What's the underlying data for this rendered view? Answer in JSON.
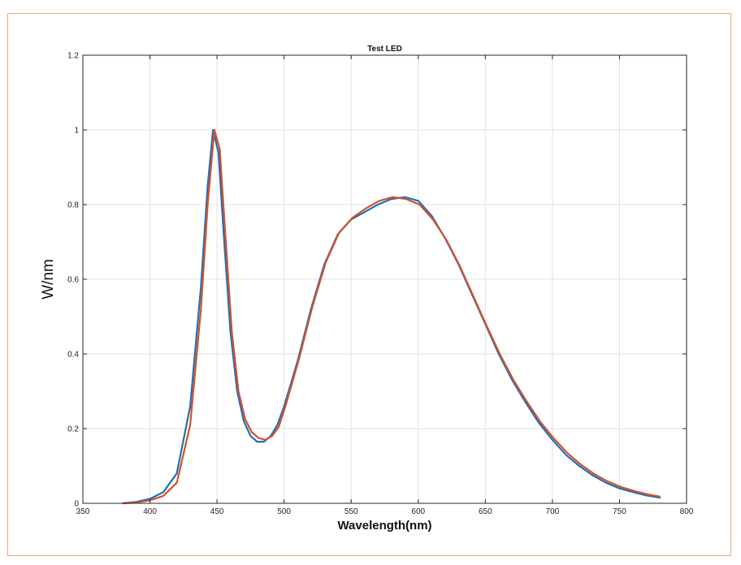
{
  "chart_data": {
    "type": "line",
    "title": "Test LED",
    "xlabel": "Wavelength(nm)",
    "ylabel": "W/nm",
    "xlim": [
      350,
      800
    ],
    "ylim": [
      0,
      1.2
    ],
    "xticks": [
      350,
      400,
      450,
      500,
      550,
      600,
      650,
      700,
      750,
      800
    ],
    "yticks": [
      0,
      0.2,
      0.4,
      0.6,
      0.8,
      1,
      1.2
    ],
    "xtick_labels": [
      "350",
      "400",
      "450",
      "500",
      "550",
      "600",
      "650",
      "700",
      "750",
      "800"
    ],
    "ytick_labels": [
      "0",
      "0.2",
      "0.4",
      "0.6",
      "0.8",
      "1",
      "1.2"
    ],
    "grid": true,
    "series": [
      {
        "color": "#1f6fb8",
        "x": [
          380,
          390,
          400,
          410,
          420,
          430,
          438,
          443,
          447,
          451,
          455,
          460,
          465,
          470,
          475,
          480,
          485,
          490,
          495,
          500,
          510,
          520,
          530,
          540,
          550,
          560,
          570,
          580,
          590,
          600,
          610,
          620,
          630,
          640,
          650,
          660,
          670,
          680,
          690,
          700,
          710,
          720,
          730,
          740,
          750,
          760,
          770,
          780
        ],
        "y": [
          0.0,
          0.004,
          0.012,
          0.03,
          0.08,
          0.26,
          0.58,
          0.85,
          1.0,
          0.94,
          0.72,
          0.46,
          0.3,
          0.22,
          0.18,
          0.165,
          0.165,
          0.18,
          0.21,
          0.26,
          0.38,
          0.52,
          0.64,
          0.72,
          0.76,
          0.78,
          0.8,
          0.815,
          0.82,
          0.81,
          0.77,
          0.71,
          0.64,
          0.56,
          0.48,
          0.4,
          0.33,
          0.27,
          0.215,
          0.17,
          0.13,
          0.1,
          0.075,
          0.055,
          0.04,
          0.03,
          0.021,
          0.015
        ]
      },
      {
        "color": "#d2522a",
        "x": [
          380,
          390,
          400,
          410,
          420,
          430,
          438,
          443,
          448,
          452,
          456,
          461,
          466,
          471,
          476,
          481,
          486,
          491,
          496,
          501,
          511,
          521,
          531,
          541,
          551,
          561,
          571,
          581,
          591,
          601,
          611,
          621,
          631,
          641,
          651,
          661,
          671,
          681,
          691,
          701,
          711,
          721,
          731,
          741,
          751,
          761,
          771,
          780
        ],
        "y": [
          0.0,
          0.002,
          0.008,
          0.02,
          0.055,
          0.21,
          0.52,
          0.8,
          1.0,
          0.95,
          0.73,
          0.46,
          0.3,
          0.225,
          0.19,
          0.175,
          0.17,
          0.18,
          0.205,
          0.26,
          0.385,
          0.525,
          0.645,
          0.725,
          0.765,
          0.79,
          0.81,
          0.82,
          0.815,
          0.8,
          0.76,
          0.705,
          0.635,
          0.555,
          0.475,
          0.398,
          0.33,
          0.272,
          0.218,
          0.174,
          0.135,
          0.104,
          0.079,
          0.059,
          0.044,
          0.033,
          0.024,
          0.018
        ]
      }
    ]
  }
}
